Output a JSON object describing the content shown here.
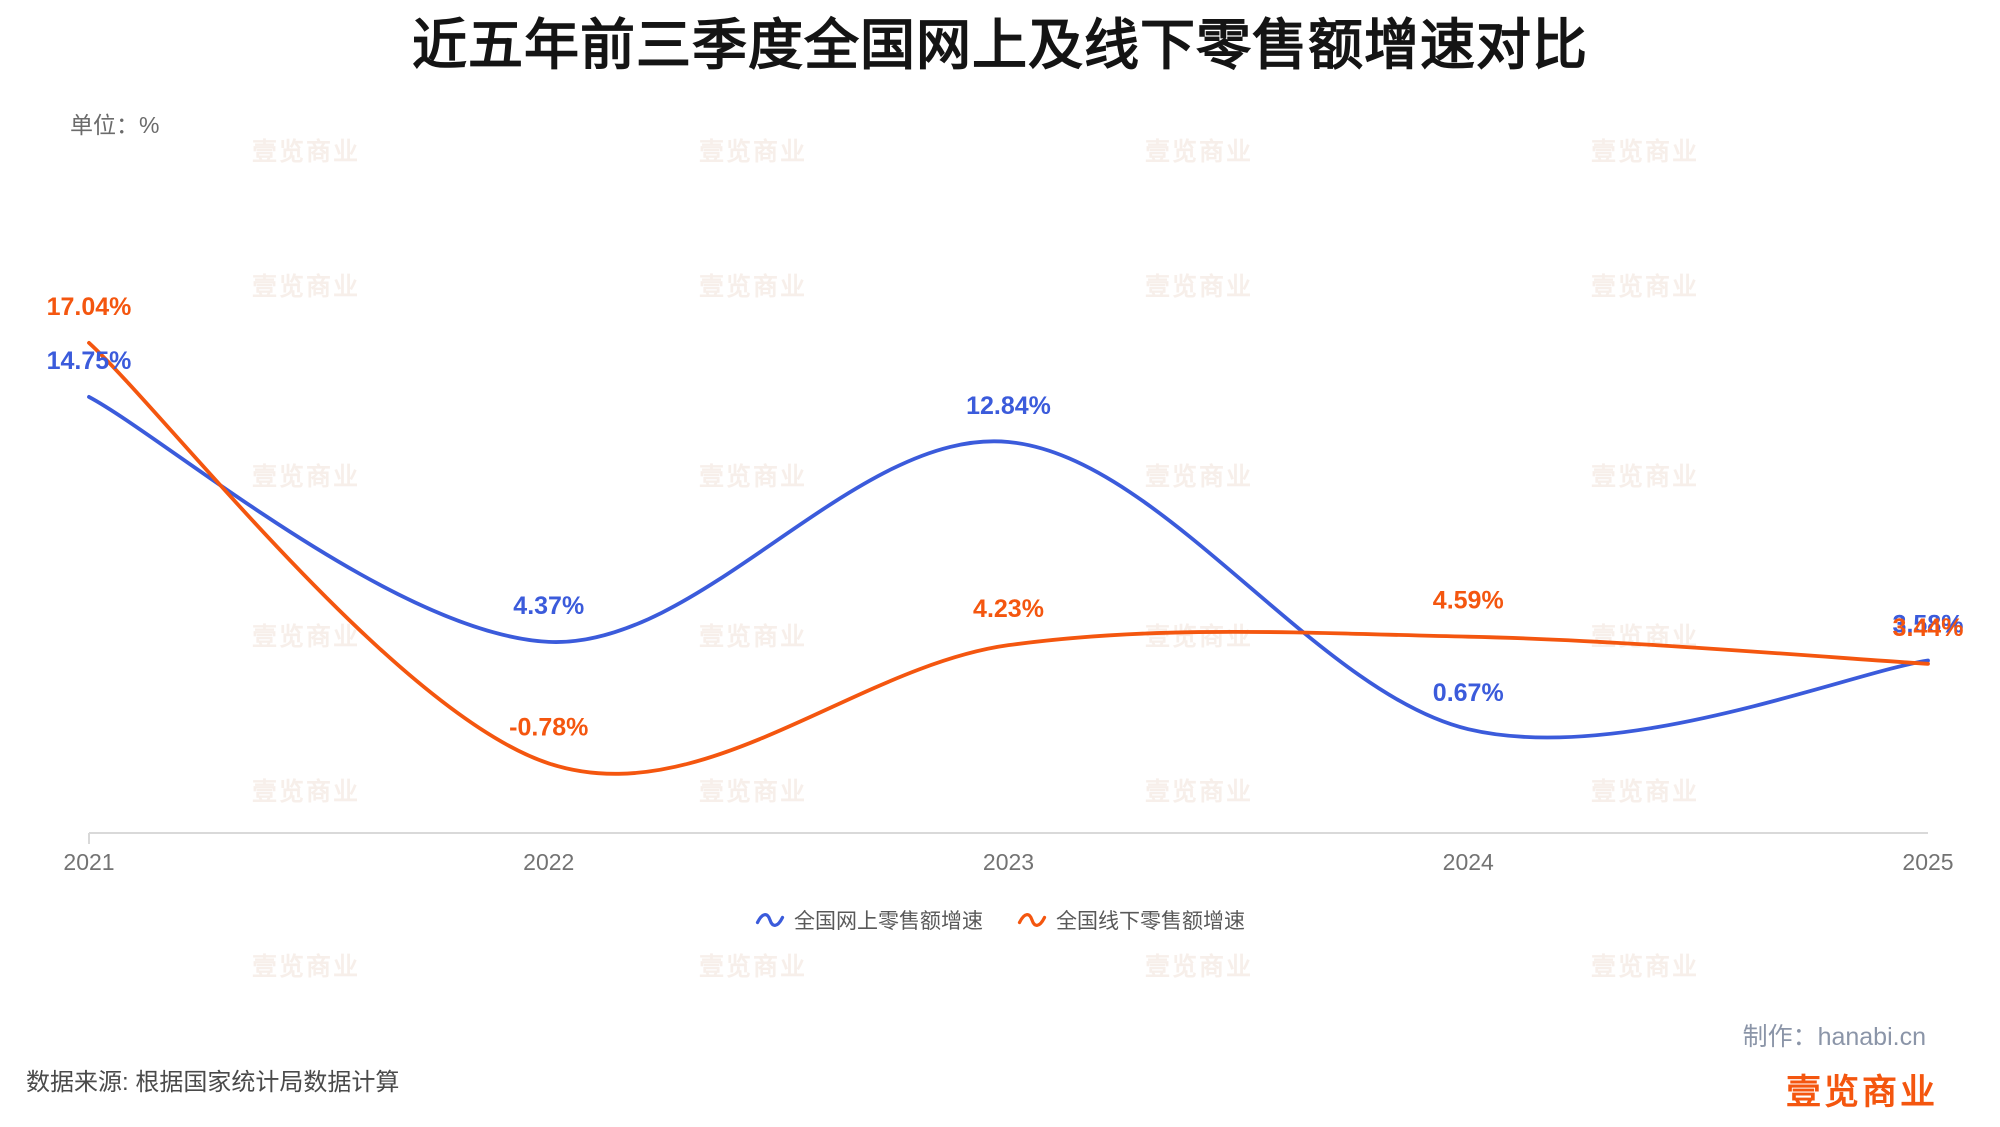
{
  "title": "近五年前三季度全国网上及线下零售额增速对比",
  "unit_label": "单位：%",
  "chart_data": {
    "type": "line",
    "title": "近五年前三季度全国网上及线下零售额增速对比",
    "xlabel": "",
    "ylabel": "单位：%",
    "x_labels": [
      "2021",
      "2022",
      "2023",
      "2024",
      "2025"
    ],
    "series": [
      {
        "name": "全国网上零售额增速",
        "color": "#3b5bdb",
        "values": [
          14.75,
          4.37,
          12.84,
          0.67,
          3.58
        ],
        "labels": [
          "14.75%",
          "4.37%",
          "12.84%",
          "0.67%",
          "3.58%"
        ]
      },
      {
        "name": "全国线下零售额增速",
        "color": "#f4560f",
        "values": [
          17.04,
          -0.78,
          4.23,
          4.59,
          3.44
        ],
        "labels": [
          "17.04%",
          "-0.78%",
          "4.23%",
          "4.59%",
          "3.44%"
        ]
      }
    ],
    "ylim": [
      -4.5,
      21
    ],
    "grid": false,
    "legend_position": "bottom",
    "curve": "smooth"
  },
  "footer": {
    "source": "数据来源: 根据国家统计局数据计算",
    "credit": "制作：hanabi.cn",
    "brand": "壹览商业"
  },
  "watermark": {
    "text": "壹览商业"
  },
  "colors": {
    "online": "#3b5bdb",
    "offline": "#f4560f",
    "axis": "#d9d9d9",
    "axis_text": "#737373",
    "muted": "#595959"
  }
}
